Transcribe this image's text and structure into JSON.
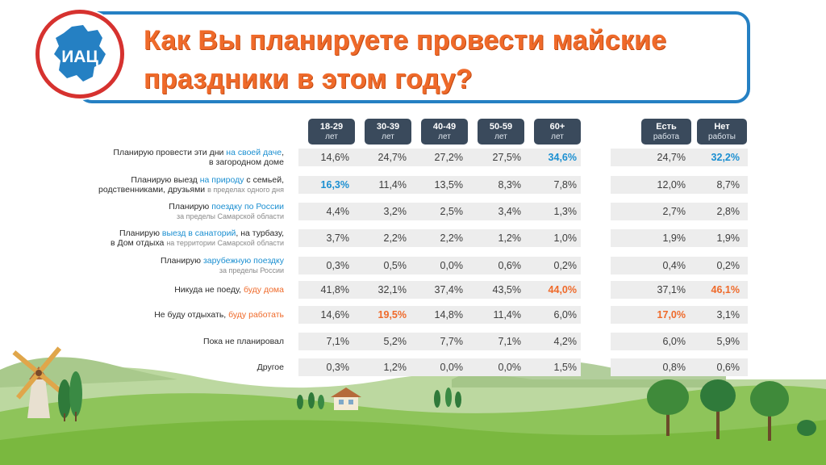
{
  "title_line1": "Как Вы планируете провести майские",
  "title_line2": "праздники в этом году?",
  "logo_text": "ИАЦ",
  "columns": [
    {
      "l1": "18-29",
      "l2": "лет"
    },
    {
      "l1": "30-39",
      "l2": "лет"
    },
    {
      "l1": "40-49",
      "l2": "лет"
    },
    {
      "l1": "50-59",
      "l2": "лет"
    },
    {
      "l1": "60+",
      "l2": "лет"
    },
    {
      "l1": "Есть",
      "l2": "работа"
    },
    {
      "l1": "Нет",
      "l2": "работы"
    }
  ],
  "rows": [
    {
      "label_parts": [
        {
          "text": "Планирую провести эти дни ",
          "style": ""
        },
        {
          "text": "на своей даче",
          "style": "blue"
        },
        {
          "text": ",",
          "style": ""
        },
        {
          "text": "BR",
          "style": "br"
        },
        {
          "text": "в загородном доме",
          "style": ""
        }
      ],
      "values": [
        "14,6%",
        "24,7%",
        "27,2%",
        "27,5%",
        "34,6%",
        "24,7%",
        "32,2%"
      ],
      "highlight": [
        "",
        "",
        "",
        "",
        "blue",
        "",
        "blue"
      ]
    },
    {
      "label_parts": [
        {
          "text": "Планирую выезд ",
          "style": ""
        },
        {
          "text": "на природу",
          "style": "blue"
        },
        {
          "text": " с семьей,",
          "style": ""
        },
        {
          "text": "BR",
          "style": "br"
        },
        {
          "text": "родственниками, друзьями ",
          "style": ""
        },
        {
          "text": "в пределах одного дня",
          "style": "small"
        }
      ],
      "values": [
        "16,3%",
        "11,4%",
        "13,5%",
        "8,3%",
        "7,8%",
        "12,0%",
        "8,7%"
      ],
      "highlight": [
        "blue",
        "",
        "",
        "",
        "",
        "",
        ""
      ]
    },
    {
      "label_parts": [
        {
          "text": "Планирую ",
          "style": ""
        },
        {
          "text": "поездку по России",
          "style": "blue"
        },
        {
          "text": "BR",
          "style": "br"
        },
        {
          "text": "за пределы Самарской области",
          "style": "small"
        }
      ],
      "values": [
        "4,4%",
        "3,2%",
        "2,5%",
        "3,4%",
        "1,3%",
        "2,7%",
        "2,8%"
      ],
      "highlight": [
        "",
        "",
        "",
        "",
        "",
        "",
        ""
      ]
    },
    {
      "label_parts": [
        {
          "text": "Планирую ",
          "style": ""
        },
        {
          "text": "выезд в санаторий",
          "style": "blue"
        },
        {
          "text": ", на турбазу,",
          "style": ""
        },
        {
          "text": "BR",
          "style": "br"
        },
        {
          "text": "в Дом отдыха ",
          "style": ""
        },
        {
          "text": "на территории Самарской области",
          "style": "small"
        }
      ],
      "values": [
        "3,7%",
        "2,2%",
        "2,2%",
        "1,2%",
        "1,0%",
        "1,9%",
        "1,9%"
      ],
      "highlight": [
        "",
        "",
        "",
        "",
        "",
        "",
        ""
      ]
    },
    {
      "label_parts": [
        {
          "text": "Планирую ",
          "style": ""
        },
        {
          "text": "зарубежную поездку",
          "style": "blue"
        },
        {
          "text": "BR",
          "style": "br"
        },
        {
          "text": "за пределы России",
          "style": "small"
        }
      ],
      "values": [
        "0,3%",
        "0,5%",
        "0,0%",
        "0,6%",
        "0,2%",
        "0,4%",
        "0,2%"
      ],
      "highlight": [
        "",
        "",
        "",
        "",
        "",
        "",
        ""
      ]
    },
    {
      "label_parts": [
        {
          "text": "Никуда не поеду, ",
          "style": ""
        },
        {
          "text": "буду дома",
          "style": "orange"
        }
      ],
      "values": [
        "41,8%",
        "32,1%",
        "37,4%",
        "43,5%",
        "44,0%",
        "37,1%",
        "46,1%"
      ],
      "highlight": [
        "",
        "",
        "",
        "",
        "orange",
        "",
        "orange"
      ]
    },
    {
      "label_parts": [
        {
          "text": "Не буду отдыхать, ",
          "style": ""
        },
        {
          "text": "буду работать",
          "style": "orange"
        }
      ],
      "values": [
        "14,6%",
        "19,5%",
        "14,8%",
        "11,4%",
        "6,0%",
        "17,0%",
        "3,1%"
      ],
      "highlight": [
        "",
        "orange",
        "",
        "",
        "",
        "orange",
        ""
      ]
    },
    {
      "label_parts": [
        {
          "text": "Пока не планировал",
          "style": ""
        }
      ],
      "values": [
        "7,1%",
        "5,2%",
        "7,7%",
        "7,1%",
        "4,2%",
        "6,0%",
        "5,9%"
      ],
      "highlight": [
        "",
        "",
        "",
        "",
        "",
        "",
        ""
      ]
    },
    {
      "label_parts": [
        {
          "text": "Другое",
          "style": ""
        }
      ],
      "values": [
        "0,3%",
        "1,2%",
        "0,0%",
        "0,0%",
        "1,5%",
        "0,8%",
        "0,6%"
      ],
      "highlight": [
        "",
        "",
        "",
        "",
        "",
        "",
        ""
      ]
    }
  ],
  "colors": {
    "accent_orange": "#ef6a2a",
    "accent_blue": "#1b8fd1",
    "frame_blue": "#2580c3",
    "header_dark": "#3a4a5c",
    "logo_red": "#d6322f"
  }
}
